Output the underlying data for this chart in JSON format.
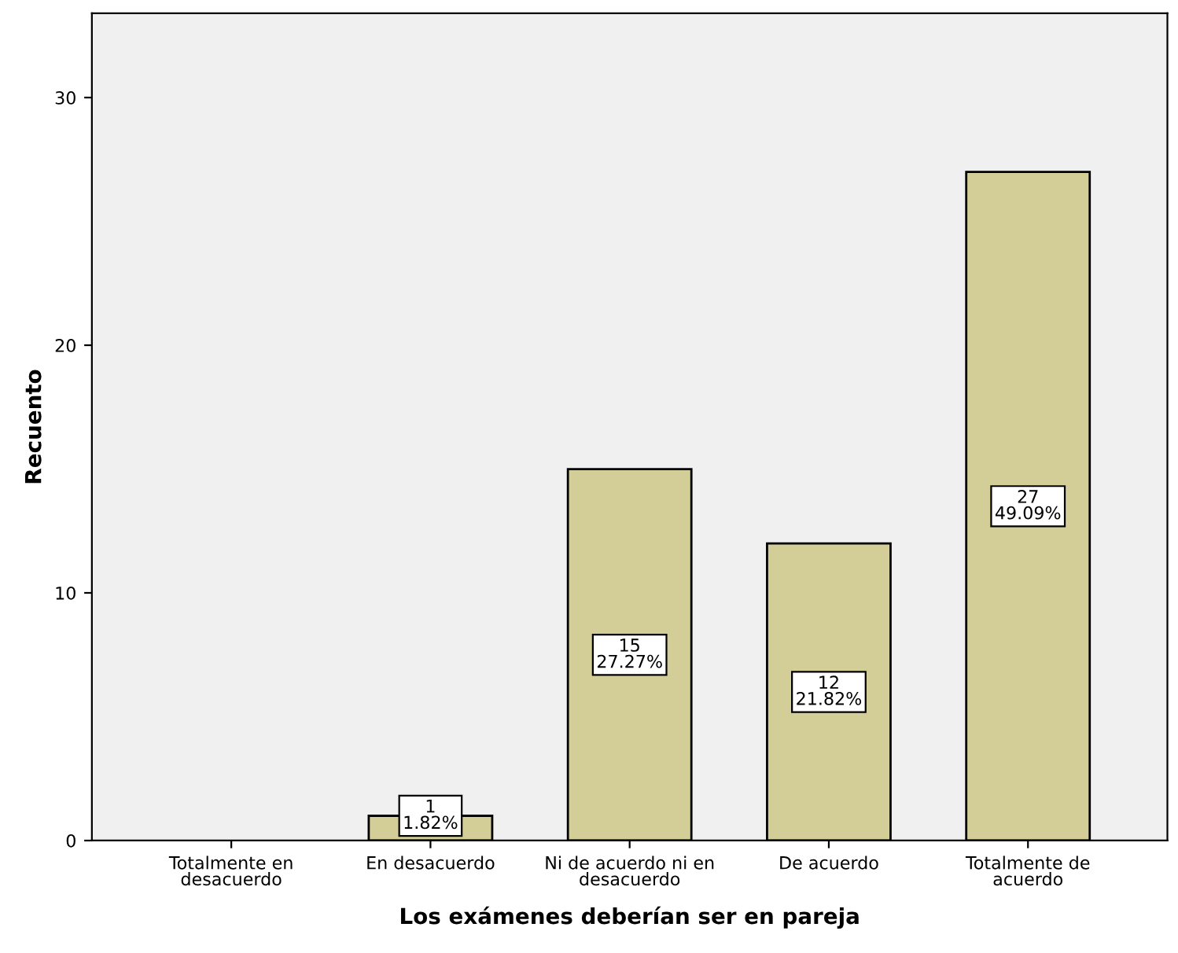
{
  "chart_data": {
    "type": "bar",
    "xlabel": "Los exámenes deberían ser en pareja",
    "ylabel": "Recuento",
    "categories": [
      "Totalmente en\ndesacuerdo",
      "En desacuerdo",
      "Ni de acuerdo ni en\ndesacuerdo",
      "De acuerdo",
      "Totalmente de\nacuerdo"
    ],
    "values": [
      0,
      1,
      15,
      12,
      27
    ],
    "value_labels": [
      null,
      "1\n1.82%",
      "15\n27.27%",
      "12\n21.82%",
      "27\n49.09%"
    ],
    "color": "#d3ce97",
    "ylim": [
      0,
      33.4
    ],
    "yticks": [
      0,
      10,
      20,
      30
    ],
    "grid": false
  }
}
